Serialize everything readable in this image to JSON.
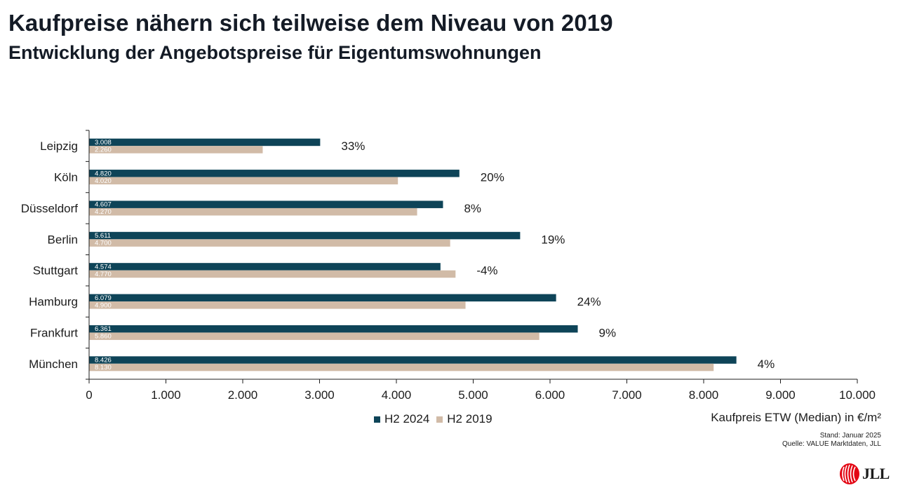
{
  "header": {
    "title": "Kaufpreise nähern sich teilweise dem Niveau von 2019",
    "subtitle": "Entwicklung der Angebotspreise für Eigentumswohnungen"
  },
  "colors": {
    "h2_2024": "#0e4458",
    "h2_2019": "#d1bba7",
    "axis": "#1c1c1c"
  },
  "chart_data": {
    "type": "bar",
    "orientation": "horizontal",
    "categories": [
      "Leipzig",
      "Köln",
      "Düsseldorf",
      "Berlin",
      "Stuttgart",
      "Hamburg",
      "Frankfurt",
      "München"
    ],
    "series": [
      {
        "name": "H2 2024",
        "values": [
          3008,
          4820,
          4607,
          5611,
          4574,
          6079,
          6361,
          8426
        ],
        "labels": [
          "3.008",
          "4.820",
          "4.607",
          "5.611",
          "4.574",
          "6.079",
          "6.361",
          "8.426"
        ]
      },
      {
        "name": "H2 2019",
        "values": [
          2260,
          4020,
          4270,
          4700,
          4770,
          4900,
          5860,
          8130
        ],
        "labels": [
          "2.260",
          "4.020",
          "4.270",
          "4.700",
          "4.770",
          "4.900",
          "5.860",
          "8.130"
        ]
      }
    ],
    "change_labels": [
      "33%",
      "20%",
      "8%",
      "19%",
      "-4%",
      "24%",
      "9%",
      "4%"
    ],
    "xlim": [
      0,
      10000
    ],
    "xticks": [
      0,
      1000,
      2000,
      3000,
      4000,
      5000,
      6000,
      7000,
      8000,
      9000,
      10000
    ],
    "xtick_labels": [
      "0",
      "1.000",
      "2.000",
      "3.000",
      "4.000",
      "5.000",
      "6.000",
      "7.000",
      "8.000",
      "9.000",
      "10.000"
    ],
    "xlabel": "Kaufpreis ETW (Median) in €/m²",
    "legend_position": "bottom-center",
    "grid": false
  },
  "footer": {
    "stand": "Stand: Januar 2025",
    "quelle": "Quelle: VALUE Marktdaten, JLL",
    "logo_text": "JLL"
  }
}
